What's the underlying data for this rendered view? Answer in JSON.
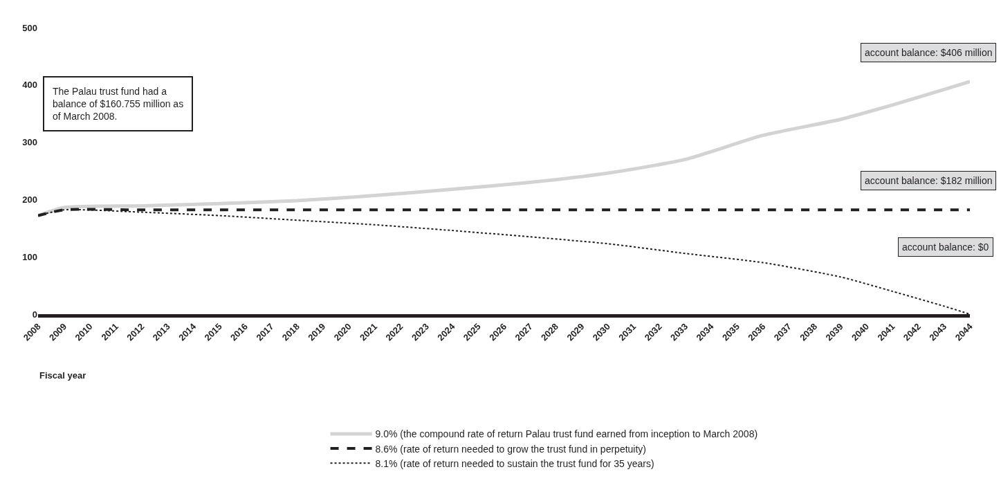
{
  "chart_data": {
    "type": "line",
    "xlabel": "Fiscal year",
    "x": [
      2008,
      2009,
      2012,
      2015,
      2018,
      2021,
      2024,
      2027,
      2030,
      2033,
      2036,
      2039,
      2041,
      2043,
      2044
    ],
    "series": [
      {
        "name": "9.0% (the compound rate of return Palau trust fund earned from inception to March 2008)",
        "color": "#d1d3d4",
        "line_style": "solid",
        "values": [
          172,
          186,
          189,
          193,
          198,
          207,
          218,
          230,
          246,
          270,
          312,
          340,
          365,
          392,
          406
        ]
      },
      {
        "name": "8.6% (rate of return needed to grow the trust fund in perpetuity)",
        "color": "#231f20",
        "line_style": "dashed",
        "values": [
          172,
          182,
          182,
          182,
          182,
          182,
          182,
          182,
          182,
          182,
          182,
          182,
          182,
          182,
          182
        ]
      },
      {
        "name": "8.1% (rate of return needed to sustain the trust fund for 35 years)",
        "color": "#231f20",
        "line_style": "dotted",
        "values": [
          172,
          182,
          178,
          172,
          164,
          156,
          146,
          135,
          123,
          106,
          90,
          65,
          40,
          14,
          0
        ]
      }
    ],
    "xlim": [
      2008,
      2044
    ],
    "xticks": [
      2008,
      2009,
      2010,
      2011,
      2012,
      2013,
      2014,
      2015,
      2016,
      2017,
      2018,
      2019,
      2020,
      2021,
      2022,
      2023,
      2024,
      2025,
      2026,
      2027,
      2028,
      2029,
      2030,
      2031,
      2032,
      2033,
      2034,
      2035,
      2036,
      2037,
      2038,
      2039,
      2040,
      2041,
      2042,
      2043,
      2044
    ],
    "ylim": [
      0,
      500
    ],
    "yticks": [
      0,
      100,
      200,
      300,
      400,
      500
    ],
    "legend": "bottom",
    "marker": "none",
    "annotations": [
      "The Palau trust fund had a balance of $160.755 million as of March 2008.",
      {
        "text": "account balance: $406 million",
        "x": 2044,
        "y": 406
      },
      {
        "text": "account balance: $182 million",
        "x": 2044,
        "y": 182
      },
      "account balance: $0"
    ]
  }
}
